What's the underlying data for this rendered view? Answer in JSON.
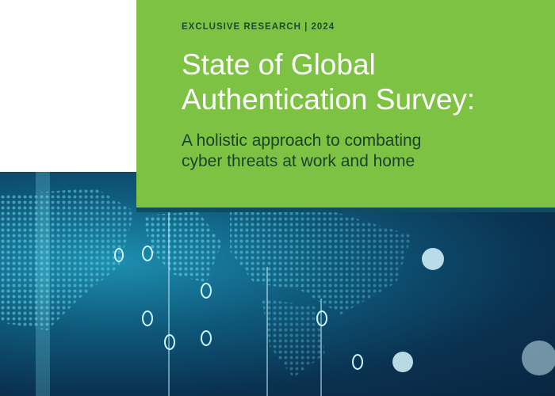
{
  "cover": {
    "kicker": "EXCLUSIVE RESEARCH | 2024",
    "title_line1": "State of Global",
    "title_line2": "Authentication Survey:",
    "subtitle_line1": "A holistic approach to combating",
    "subtitle_line2": "cyber threats at work and home"
  },
  "colors": {
    "panel": "#7dc243",
    "kicker_text": "#1f4a33",
    "background": "#0a3150"
  },
  "image": {
    "description_icon": "digital-world-map-dots"
  }
}
